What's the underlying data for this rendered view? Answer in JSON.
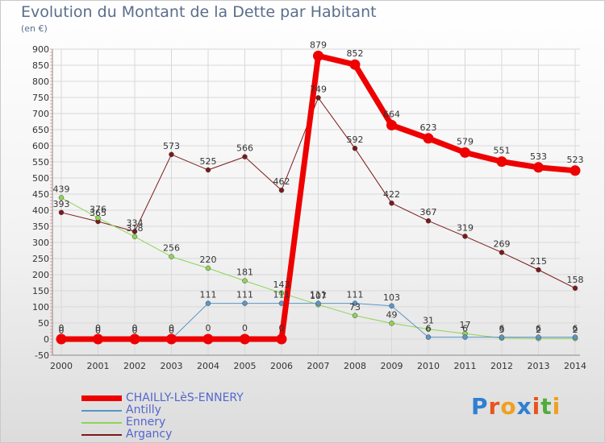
{
  "title": "Evolution du Montant de la Dette par Habitant",
  "unit": "(en €)",
  "logo": {
    "letters": [
      "P",
      "r",
      "o",
      "x",
      "i",
      "t",
      "i"
    ],
    "colors": [
      "#2f80d0",
      "#e8541c",
      "#f0a020",
      "#2f80d0",
      "#e8541c",
      "#4fae3b",
      "#f0a020"
    ]
  },
  "chart_data": {
    "type": "line",
    "categories": [
      "2000",
      "2001",
      "2002",
      "2003",
      "2004",
      "2005",
      "2006",
      "2007",
      "2008",
      "2009",
      "2010",
      "2011",
      "2012",
      "2013",
      "2014"
    ],
    "ylim": [
      -50,
      900
    ],
    "yticks": [
      "-50",
      "0",
      "50",
      "100",
      "150",
      "200",
      "250",
      "300",
      "350",
      "400",
      "450",
      "500",
      "550",
      "600",
      "650",
      "700",
      "750",
      "800",
      "850",
      "900"
    ],
    "grid": true,
    "legend_position": "bottom-left",
    "series": [
      {
        "name": "Argancy",
        "color": "#7a1a1a",
        "width": 1,
        "values": [
          393,
          365,
          334,
          573,
          525,
          566,
          462,
          749,
          592,
          422,
          367,
          319,
          269,
          215,
          158
        ],
        "labels": [
          "393",
          "365",
          "334",
          "573",
          "525",
          "566",
          "462",
          "749",
          "592",
          "422",
          "367",
          "319",
          "269",
          "215",
          "158"
        ]
      },
      {
        "name": "Ennery",
        "color": "#8ed456",
        "width": 1,
        "values": [
          439,
          376,
          318,
          256,
          220,
          181,
          143,
          107,
          73,
          49,
          31,
          17,
          3,
          2,
          2
        ],
        "labels": [
          "439",
          "376",
          "318",
          "256",
          "220",
          "181",
          "143",
          "107",
          "73",
          "49",
          "31",
          "17",
          "3",
          "2",
          "2"
        ]
      },
      {
        "name": "Antilly",
        "color": "#5a95c8",
        "width": 1,
        "values": [
          0,
          0,
          0,
          0,
          111,
          111,
          111,
          111,
          111,
          103,
          6,
          6,
          6,
          6,
          6
        ],
        "labels": [
          "0",
          "0",
          "0",
          "0",
          "111",
          "111",
          "111",
          "111",
          "111",
          "103",
          "6",
          "6",
          "6",
          "6",
          "6"
        ]
      },
      {
        "name": "CHAILLY-LèS-ENNERY",
        "color": "#ee0000",
        "width": 7,
        "values": [
          0,
          0,
          0,
          0,
          0,
          0,
          0,
          879,
          852,
          664,
          623,
          579,
          551,
          533,
          523
        ],
        "labels": [
          "0",
          "0",
          "0",
          "0",
          "0",
          "0",
          "0",
          "879",
          "852",
          "664",
          "623",
          "579",
          "551",
          "533",
          "523"
        ]
      }
    ]
  }
}
